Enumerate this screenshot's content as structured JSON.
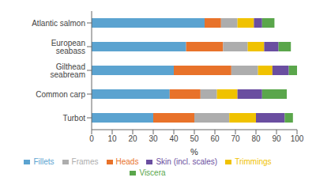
{
  "chart_data": {
    "type": "bar",
    "orientation": "horizontal",
    "stacked": true,
    "categories": [
      "Atlantic salmon",
      "European seabass",
      "Gilthead seabream",
      "Common carp",
      "Turbot"
    ],
    "series": [
      {
        "name": "Fillets",
        "color": "#5BA3D0",
        "values": [
          55,
          46,
          40,
          38,
          30
        ]
      },
      {
        "name": "Heads",
        "color": "#E8722A",
        "values": [
          8,
          18,
          28,
          15,
          20
        ]
      },
      {
        "name": "Frames",
        "color": "#ADADAD",
        "values": [
          8,
          12,
          13,
          8,
          17
        ]
      },
      {
        "name": "Trimmings",
        "color": "#F0C200",
        "values": [
          8,
          8,
          7,
          10,
          13
        ]
      },
      {
        "name": "Skin (incl. scales)",
        "color": "#6A4EA0",
        "values": [
          4,
          7,
          8,
          12,
          14
        ]
      },
      {
        "name": "Viscera",
        "color": "#5AA64B",
        "values": [
          6,
          6,
          4,
          12,
          4
        ]
      }
    ],
    "xlabel": "%",
    "xlim": [
      0,
      100
    ],
    "xticks": [
      0,
      10,
      20,
      30,
      40,
      50,
      60,
      70,
      80,
      90,
      100
    ],
    "grid": false,
    "legend": "bottom"
  }
}
